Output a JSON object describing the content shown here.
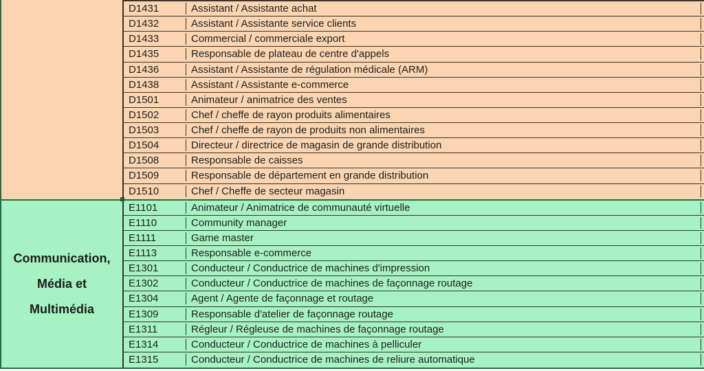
{
  "table": {
    "columns": [
      "category",
      "code",
      "job_title"
    ],
    "colors": {
      "section_d_bg": "#fbd5b1",
      "section_e_bg": "#a6f2c2",
      "grid_line": "#38332c",
      "outer_border": "#226b43",
      "text": "#1f1f1f"
    },
    "sections": [
      {
        "id": "section-d",
        "category_label": "",
        "category_lines": [],
        "bg": "#fbd5b1",
        "rows": [
          {
            "code": "D1431",
            "title": "Assistant / Assistante achat"
          },
          {
            "code": "D1432",
            "title": "Assistant / Assistante service clients"
          },
          {
            "code": "D1433",
            "title": "Commercial / commerciale export"
          },
          {
            "code": "D1435",
            "title": "Responsable de plateau de centre d'appels"
          },
          {
            "code": "D1436",
            "title": "Assistant / Assistante de régulation médicale (ARM)"
          },
          {
            "code": "D1438",
            "title": "Assistant / Assistante e-commerce"
          },
          {
            "code": "D1501",
            "title": "Animateur / animatrice des ventes"
          },
          {
            "code": "D1502",
            "title": "Chef / cheffe de rayon produits alimentaires"
          },
          {
            "code": "D1503",
            "title": "Chef / cheffe de rayon de produits non alimentaires"
          },
          {
            "code": "D1504",
            "title": "Directeur / directrice de magasin de grande distribution"
          },
          {
            "code": "D1508",
            "title": "Responsable de caisses"
          },
          {
            "code": "D1509",
            "title": "Responsable de département en grande distribution"
          },
          {
            "code": "D1510",
            "title": "Chef / Cheffe de secteur magasin"
          }
        ]
      },
      {
        "id": "section-e",
        "category_label": "Communication, Média et Multimédia",
        "category_lines": [
          "Communication,",
          "Média et",
          "Multimédia"
        ],
        "bg": "#a6f2c2",
        "rows": [
          {
            "code": "E1101",
            "title": "Animateur / Animatrice de communauté virtuelle"
          },
          {
            "code": "E1110",
            "title": "Community manager"
          },
          {
            "code": "E1111",
            "title": "Game master"
          },
          {
            "code": "E1113",
            "title": "Responsable e-commerce"
          },
          {
            "code": "E1301",
            "title": "Conducteur / Conductrice de machines d'impression"
          },
          {
            "code": "E1302",
            "title": "Conducteur / Conductrice de machines de façonnage routage"
          },
          {
            "code": "E1304",
            "title": "Agent / Agente de façonnage et routage"
          },
          {
            "code": "E1309",
            "title": "Responsable d'atelier de façonnage routage"
          },
          {
            "code": "E1311",
            "title": "Régleur / Régleuse de machines de façonnage routage"
          },
          {
            "code": "E1314",
            "title": "Conducteur / Conductrice de machines à pelliculer"
          },
          {
            "code": "E1315",
            "title": "Conducteur / Conductrice de machines de reliure automatique"
          }
        ]
      }
    ]
  }
}
